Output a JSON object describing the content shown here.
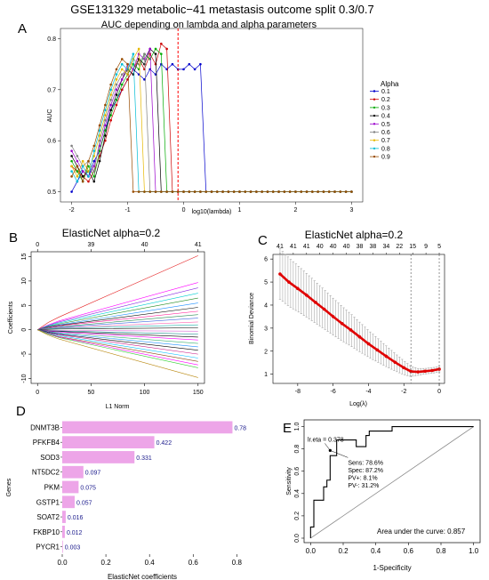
{
  "figure": {
    "main_title": "GSE131329 metabolic−41 metastasis outcome split 0.3/0.7",
    "panel_letters": [
      "A",
      "B",
      "C",
      "D",
      "E"
    ]
  },
  "chart_data": [
    {
      "panel": "A",
      "type": "line",
      "title": "AUC depending on lambda and alpha parameters",
      "xlabel": "log10(lambda)",
      "ylabel": "AUC",
      "xlim": [
        -2.2,
        3.2
      ],
      "ylim": [
        0.48,
        0.82
      ],
      "xticks": [
        -2,
        -1,
        0,
        1,
        2,
        3
      ],
      "yticks": [
        0.5,
        0.6,
        0.7,
        0.8
      ],
      "x": [
        -2.0,
        -1.9,
        -1.8,
        -1.7,
        -1.6,
        -1.5,
        -1.4,
        -1.3,
        -1.2,
        -1.1,
        -1.0,
        -0.9,
        -0.8,
        -0.7,
        -0.6,
        -0.5,
        -0.4,
        -0.3,
        -0.2,
        -0.1,
        0.0,
        0.1,
        0.2,
        0.3,
        0.4,
        0.5,
        0.6,
        0.7,
        0.8,
        0.9,
        1.0,
        1.1,
        1.2,
        1.3,
        1.4,
        1.5,
        1.6,
        1.7,
        1.8,
        1.9,
        2.0,
        2.1,
        2.2,
        2.3,
        2.4,
        2.5,
        2.6,
        2.7,
        2.8,
        2.9,
        3.0
      ],
      "vline_x": -0.1,
      "legend_title": "Alpha",
      "legend_position": "right",
      "series": [
        {
          "name": "0.1",
          "color": "#0000cc",
          "values": [
            0.5,
            0.52,
            0.54,
            0.53,
            0.56,
            0.58,
            0.62,
            0.66,
            0.68,
            0.7,
            0.72,
            0.74,
            0.73,
            0.72,
            0.74,
            0.73,
            0.75,
            0.74,
            0.75,
            0.74,
            0.74,
            0.75,
            0.74,
            0.75,
            0.5,
            0.5,
            0.5,
            0.5,
            0.5,
            0.5,
            0.5,
            0.5,
            0.5,
            0.5,
            0.5,
            0.5,
            0.5,
            0.5,
            0.5,
            0.5,
            0.5,
            0.5,
            0.5,
            0.5,
            0.5,
            0.5,
            0.5,
            0.5,
            0.5,
            0.5,
            0.5
          ]
        },
        {
          "name": "0.2",
          "color": "#cc0000",
          "values": [
            0.55,
            0.54,
            0.53,
            0.52,
            0.54,
            0.57,
            0.6,
            0.64,
            0.67,
            0.7,
            0.72,
            0.74,
            0.76,
            0.74,
            0.77,
            0.75,
            0.79,
            0.78,
            0.5,
            0.5,
            0.5,
            0.5,
            0.5,
            0.5,
            0.5,
            0.5,
            0.5,
            0.5,
            0.5,
            0.5,
            0.5,
            0.5,
            0.5,
            0.5,
            0.5,
            0.5,
            0.5,
            0.5,
            0.5,
            0.5,
            0.5,
            0.5,
            0.5,
            0.5,
            0.5,
            0.5,
            0.5,
            0.5,
            0.5,
            0.5,
            0.5
          ]
        },
        {
          "name": "0.3",
          "color": "#00aa00",
          "values": [
            0.56,
            0.54,
            0.52,
            0.55,
            0.53,
            0.58,
            0.62,
            0.65,
            0.68,
            0.71,
            0.73,
            0.75,
            0.74,
            0.77,
            0.76,
            0.78,
            0.77,
            0.5,
            0.5,
            0.5,
            0.5,
            0.5,
            0.5,
            0.5,
            0.5,
            0.5,
            0.5,
            0.5,
            0.5,
            0.5,
            0.5,
            0.5,
            0.5,
            0.5,
            0.5,
            0.5,
            0.5,
            0.5,
            0.5,
            0.5,
            0.5,
            0.5,
            0.5,
            0.5,
            0.5,
            0.5,
            0.5,
            0.5,
            0.5,
            0.5,
            0.5
          ]
        },
        {
          "name": "0.4",
          "color": "#000000",
          "values": [
            0.57,
            0.55,
            0.53,
            0.54,
            0.52,
            0.56,
            0.61,
            0.66,
            0.69,
            0.72,
            0.74,
            0.73,
            0.76,
            0.75,
            0.78,
            0.77,
            0.5,
            0.5,
            0.5,
            0.5,
            0.5,
            0.5,
            0.5,
            0.5,
            0.5,
            0.5,
            0.5,
            0.5,
            0.5,
            0.5,
            0.5,
            0.5,
            0.5,
            0.5,
            0.5,
            0.5,
            0.5,
            0.5,
            0.5,
            0.5,
            0.5,
            0.5,
            0.5,
            0.5,
            0.5,
            0.5,
            0.5,
            0.5,
            0.5,
            0.5,
            0.5
          ]
        },
        {
          "name": "0.5",
          "color": "#9900cc",
          "values": [
            0.58,
            0.56,
            0.54,
            0.53,
            0.55,
            0.59,
            0.63,
            0.67,
            0.7,
            0.72,
            0.75,
            0.74,
            0.77,
            0.76,
            0.78,
            0.5,
            0.5,
            0.5,
            0.5,
            0.5,
            0.5,
            0.5,
            0.5,
            0.5,
            0.5,
            0.5,
            0.5,
            0.5,
            0.5,
            0.5,
            0.5,
            0.5,
            0.5,
            0.5,
            0.5,
            0.5,
            0.5,
            0.5,
            0.5,
            0.5,
            0.5,
            0.5,
            0.5,
            0.5,
            0.5,
            0.5,
            0.5,
            0.5,
            0.5,
            0.5,
            0.5
          ]
        },
        {
          "name": "0.6",
          "color": "#808080",
          "values": [
            0.59,
            0.57,
            0.55,
            0.56,
            0.54,
            0.6,
            0.64,
            0.68,
            0.71,
            0.73,
            0.74,
            0.76,
            0.75,
            0.77,
            0.5,
            0.5,
            0.5,
            0.5,
            0.5,
            0.5,
            0.5,
            0.5,
            0.5,
            0.5,
            0.5,
            0.5,
            0.5,
            0.5,
            0.5,
            0.5,
            0.5,
            0.5,
            0.5,
            0.5,
            0.5,
            0.5,
            0.5,
            0.5,
            0.5,
            0.5,
            0.5,
            0.5,
            0.5,
            0.5,
            0.5,
            0.5,
            0.5,
            0.5,
            0.5,
            0.5,
            0.5
          ]
        },
        {
          "name": "0.7",
          "color": "#e6b800",
          "values": [
            0.55,
            0.53,
            0.56,
            0.54,
            0.57,
            0.61,
            0.65,
            0.69,
            0.72,
            0.74,
            0.73,
            0.76,
            0.78,
            0.5,
            0.5,
            0.5,
            0.5,
            0.5,
            0.5,
            0.5,
            0.5,
            0.5,
            0.5,
            0.5,
            0.5,
            0.5,
            0.5,
            0.5,
            0.5,
            0.5,
            0.5,
            0.5,
            0.5,
            0.5,
            0.5,
            0.5,
            0.5,
            0.5,
            0.5,
            0.5,
            0.5,
            0.5,
            0.5,
            0.5,
            0.5,
            0.5,
            0.5,
            0.5,
            0.5,
            0.5,
            0.5
          ]
        },
        {
          "name": "0.8",
          "color": "#00bcd4",
          "values": [
            0.54,
            0.52,
            0.55,
            0.53,
            0.58,
            0.62,
            0.66,
            0.7,
            0.73,
            0.75,
            0.74,
            0.77,
            0.5,
            0.5,
            0.5,
            0.5,
            0.5,
            0.5,
            0.5,
            0.5,
            0.5,
            0.5,
            0.5,
            0.5,
            0.5,
            0.5,
            0.5,
            0.5,
            0.5,
            0.5,
            0.5,
            0.5,
            0.5,
            0.5,
            0.5,
            0.5,
            0.5,
            0.5,
            0.5,
            0.5,
            0.5,
            0.5,
            0.5,
            0.5,
            0.5,
            0.5,
            0.5,
            0.5,
            0.5,
            0.5,
            0.5
          ]
        },
        {
          "name": "0.9",
          "color": "#994c00",
          "values": [
            0.53,
            0.55,
            0.52,
            0.56,
            0.59,
            0.63,
            0.67,
            0.71,
            0.74,
            0.76,
            0.75,
            0.5,
            0.5,
            0.5,
            0.5,
            0.5,
            0.5,
            0.5,
            0.5,
            0.5,
            0.5,
            0.5,
            0.5,
            0.5,
            0.5,
            0.5,
            0.5,
            0.5,
            0.5,
            0.5,
            0.5,
            0.5,
            0.5,
            0.5,
            0.5,
            0.5,
            0.5,
            0.5,
            0.5,
            0.5,
            0.5,
            0.5,
            0.5,
            0.5,
            0.5,
            0.5,
            0.5,
            0.5,
            0.5,
            0.5,
            0.5
          ]
        }
      ]
    },
    {
      "panel": "B",
      "type": "line",
      "title": "ElasticNet alpha=0.2",
      "xlabel": "L1 Norm",
      "ylabel": "Coefficients",
      "xlim": [
        -6,
        156
      ],
      "ylim": [
        -11,
        16
      ],
      "xticks": [
        0,
        50,
        100,
        150
      ],
      "yticks": [
        -10,
        -5,
        0,
        5,
        10,
        15
      ],
      "top_axis_ticks_at": [
        0,
        50,
        100,
        150
      ],
      "top_axis_labels": [
        "0",
        "39",
        "40",
        "41"
      ],
      "x": [
        0,
        10,
        20,
        150
      ],
      "series": [
        {
          "color": "#e41a1c",
          "values": [
            0,
            1.5,
            2.6,
            15.2
          ]
        },
        {
          "color": "#ff00ff",
          "values": [
            0,
            1.0,
            1.8,
            9.7
          ]
        },
        {
          "color": "#8a2be2",
          "values": [
            0,
            0.9,
            1.6,
            8.6
          ]
        },
        {
          "color": "#00ced1",
          "values": [
            0,
            0.8,
            1.4,
            7.5
          ]
        },
        {
          "color": "#228b22",
          "values": [
            0,
            0.7,
            1.2,
            6.5
          ]
        },
        {
          "color": "#1e90ff",
          "values": [
            0,
            0.6,
            1.0,
            5.5
          ]
        },
        {
          "color": "#000000",
          "values": [
            0,
            0.55,
            0.9,
            4.6
          ]
        },
        {
          "color": "#ff1493",
          "values": [
            0,
            0.5,
            0.8,
            3.8
          ]
        },
        {
          "color": "#2e8b57",
          "values": [
            0,
            0.4,
            0.6,
            3.1
          ]
        },
        {
          "color": "#4169e1",
          "values": [
            0,
            0.3,
            0.5,
            2.4
          ]
        },
        {
          "color": "#ff69b4",
          "values": [
            0,
            0.25,
            0.4,
            1.6
          ]
        },
        {
          "color": "#20b2aa",
          "values": [
            0,
            0.2,
            0.3,
            1.0
          ]
        },
        {
          "color": "#000000",
          "values": [
            0,
            0.1,
            0.15,
            0.4
          ]
        },
        {
          "color": "#da70d6",
          "values": [
            0,
            -0.1,
            -0.1,
            -0.3
          ]
        },
        {
          "color": "#008080",
          "values": [
            0,
            -0.2,
            -0.25,
            -0.9
          ]
        },
        {
          "color": "#000000",
          "values": [
            0,
            -0.25,
            -0.35,
            -1.5
          ]
        },
        {
          "color": "#ff00ff",
          "values": [
            0,
            -0.3,
            -0.45,
            -2.1
          ]
        },
        {
          "color": "#3cb371",
          "values": [
            0,
            -0.35,
            -0.6,
            -2.8
          ]
        },
        {
          "color": "#1e90ff",
          "values": [
            0,
            -0.45,
            -0.75,
            -3.5
          ]
        },
        {
          "color": "#000000",
          "values": [
            0,
            -0.5,
            -0.9,
            -4.2
          ]
        },
        {
          "color": "#c71585",
          "values": [
            0,
            -0.6,
            -1.0,
            -5.0
          ]
        },
        {
          "color": "#00bfff",
          "values": [
            0,
            -0.7,
            -1.2,
            -5.8
          ]
        },
        {
          "color": "#8b4513",
          "values": [
            0,
            -0.8,
            -1.4,
            -6.5
          ]
        },
        {
          "color": "#ff00ff",
          "values": [
            0,
            -0.85,
            -1.5,
            -7.2
          ]
        },
        {
          "color": "#32cd32",
          "values": [
            0,
            -0.9,
            -1.6,
            -7.8
          ]
        },
        {
          "color": "#b8860b",
          "values": [
            0,
            -1.1,
            -1.9,
            -9.8
          ]
        }
      ]
    },
    {
      "panel": "C",
      "type": "line",
      "title": "ElasticNet alpha=0.2",
      "xlabel": "Log(λ)",
      "ylabel": "Binomial Deviance",
      "xlim": [
        -9.4,
        0.3
      ],
      "ylim": [
        0.6,
        6.2
      ],
      "xticks": [
        -8,
        -6,
        -4,
        -2,
        0
      ],
      "yticks": [
        1,
        2,
        3,
        4,
        5,
        6
      ],
      "top_axis_labels": [
        "41",
        "41",
        "41",
        "40",
        "40",
        "40",
        "38",
        "38",
        "34",
        "22",
        "15",
        "9",
        "5"
      ],
      "top_axis_range": [
        -9.0,
        0.0
      ],
      "x": [
        -9.0,
        -8.5,
        -8.0,
        -7.5,
        -7.0,
        -6.5,
        -6.0,
        -5.5,
        -5.0,
        -4.5,
        -4.0,
        -3.5,
        -3.0,
        -2.5,
        -2.0,
        -1.6,
        -1.2,
        -0.8,
        -0.4,
        0.0
      ],
      "values": [
        5.35,
        5.0,
        4.72,
        4.43,
        4.12,
        3.82,
        3.5,
        3.2,
        2.92,
        2.62,
        2.32,
        2.05,
        1.78,
        1.52,
        1.28,
        1.12,
        1.1,
        1.13,
        1.16,
        1.22
      ],
      "error": [
        1.1,
        1.05,
        1.0,
        0.95,
        0.9,
        0.85,
        0.8,
        0.75,
        0.7,
        0.64,
        0.58,
        0.52,
        0.45,
        0.38,
        0.3,
        0.22,
        0.15,
        0.12,
        0.12,
        0.12
      ],
      "vlines": [
        -1.6,
        0.0
      ]
    },
    {
      "panel": "D",
      "type": "bar",
      "orientation": "horizontal",
      "xlabel": "ElasticNet coefficients",
      "ylabel": "Genes",
      "xlim": [
        0,
        0.88
      ],
      "xticks": [
        0.0,
        0.2,
        0.4,
        0.6,
        0.8
      ],
      "xtick_labels": [
        "0.0",
        "0.2",
        "0.4",
        "0.6",
        "0.8"
      ],
      "categories": [
        "DNMT3B",
        "PFKFB4",
        "SOD3",
        "NT5DC2",
        "PKM",
        "GSTP1",
        "SOAT2",
        "FKBP10",
        "PYCR1"
      ],
      "values": [
        0.78,
        0.422,
        0.331,
        0.097,
        0.075,
        0.057,
        0.016,
        0.012,
        0.003
      ],
      "value_labels": [
        "0.78",
        "0.422",
        "0.331",
        "0.097",
        "0.075",
        "0.057",
        "0.016",
        "0.012",
        "0.003"
      ],
      "bar_color": "#eda5e8",
      "label_color": "#1a1a8c"
    },
    {
      "panel": "E",
      "type": "line",
      "subtype": "roc",
      "xlabel": "1-Specificity",
      "ylabel": "Sensitivity",
      "xlim": [
        -0.04,
        1.04
      ],
      "ylim": [
        -0.04,
        1.06
      ],
      "xticks": [
        0.0,
        0.2,
        0.4,
        0.6,
        0.8,
        1.0
      ],
      "yticks": [
        0.0,
        0.2,
        0.4,
        0.6,
        0.8,
        1.0
      ],
      "roc_x": [
        0.0,
        0.0,
        0.02,
        0.02,
        0.08,
        0.08,
        0.1,
        0.1,
        0.12,
        0.12,
        0.16,
        0.16,
        0.28,
        0.28,
        0.34,
        0.34,
        0.36,
        0.36,
        0.5,
        0.5,
        1.0
      ],
      "roc_y": [
        0.0,
        0.1,
        0.1,
        0.34,
        0.34,
        0.46,
        0.46,
        0.52,
        0.52,
        0.74,
        0.74,
        0.88,
        0.88,
        0.82,
        0.82,
        0.92,
        0.92,
        0.96,
        0.96,
        1.0,
        1.0
      ],
      "cutoff_point": {
        "x": 0.12,
        "y": 0.786
      },
      "cutoff_label": "lr.eta = 0.378",
      "stats_lines": [
        "Sens: 78.6%",
        "Spec: 87.2%",
        "PV+: 8.1%",
        "PV-: 31.2%"
      ],
      "auc_text": "Area under the curve: 0.857"
    }
  ]
}
